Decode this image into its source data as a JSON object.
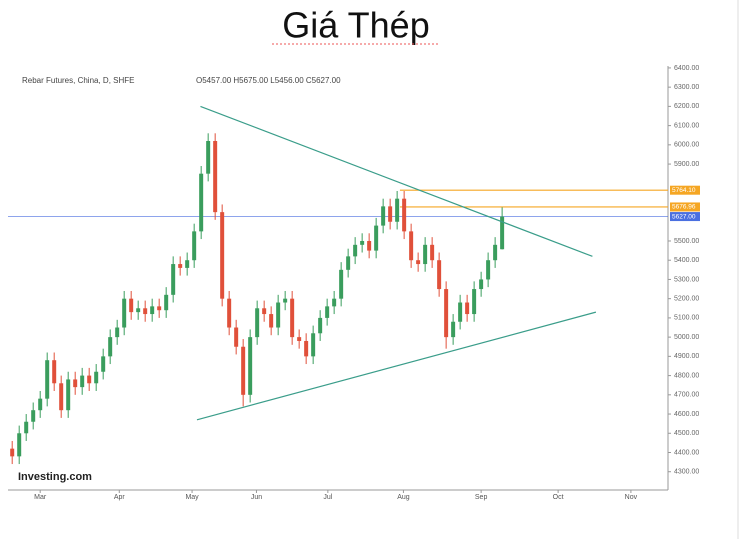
{
  "chart_data": {
    "type": "candlestick",
    "title": "Giá Thép",
    "header": "Rebar Futures, China, D, SHFE",
    "ohlc_text": "O5457.00 H5675.00 L5456.00 C5627.00",
    "watermark": "Investing.com",
    "up_color": "#3a9d5d",
    "down_color": "#e0503a",
    "open": [
      4420,
      4380,
      4500,
      4560,
      4620,
      4680,
      4880,
      4760,
      4620,
      4780,
      4740,
      4800,
      4760,
      4820,
      4900,
      5000,
      5050,
      5200,
      5130,
      5150,
      5120,
      5160,
      5140,
      5220,
      5380,
      5360,
      5400,
      5550,
      5850,
      6020,
      5650,
      5200,
      5050,
      4950,
      4700,
      5000,
      5150,
      5120,
      5050,
      5180,
      5200,
      5000,
      4980,
      4900,
      5020,
      5100,
      5160,
      5200,
      5350,
      5420,
      5480,
      5500,
      5450,
      5580,
      5680,
      5600,
      5720,
      5550,
      5400,
      5380,
      5480,
      5400,
      5250,
      5000,
      5080,
      5180,
      5120,
      5250,
      5300,
      5400,
      5457
    ],
    "high": [
      4460,
      4540,
      4600,
      4660,
      4720,
      4920,
      4920,
      4800,
      4820,
      4820,
      4840,
      4840,
      4860,
      4940,
      5040,
      5090,
      5240,
      5240,
      5190,
      5190,
      5200,
      5200,
      5260,
      5420,
      5420,
      5440,
      5590,
      5890,
      6060,
      6060,
      5690,
      5240,
      5090,
      4990,
      5040,
      5190,
      5190,
      5160,
      5220,
      5240,
      5240,
      5040,
      5020,
      5060,
      5140,
      5200,
      5240,
      5390,
      5460,
      5520,
      5540,
      5540,
      5620,
      5720,
      5720,
      5760,
      5760,
      5590,
      5440,
      5520,
      5520,
      5440,
      5290,
      5120,
      5220,
      5220,
      5290,
      5340,
      5440,
      5520,
      5675
    ],
    "low": [
      4340,
      4340,
      4460,
      4520,
      4580,
      4640,
      4720,
      4580,
      4580,
      4700,
      4700,
      4720,
      4720,
      4780,
      4860,
      4960,
      5010,
      5090,
      5090,
      5080,
      5080,
      5100,
      5100,
      5180,
      5320,
      5320,
      5360,
      5510,
      5810,
      5610,
      5160,
      5010,
      4910,
      4640,
      4660,
      4960,
      5080,
      5010,
      5010,
      5140,
      4960,
      4940,
      4860,
      4860,
      4980,
      5060,
      5120,
      5160,
      5310,
      5380,
      5440,
      5410,
      5410,
      5540,
      5560,
      5560,
      5510,
      5360,
      5340,
      5340,
      5360,
      5210,
      4940,
      4960,
      5040,
      5080,
      5080,
      5210,
      5260,
      5360,
      5456
    ],
    "close": [
      4380,
      4500,
      4560,
      4620,
      4680,
      4880,
      4760,
      4620,
      4780,
      4740,
      4800,
      4760,
      4820,
      4900,
      5000,
      5050,
      5200,
      5130,
      5150,
      5120,
      5160,
      5140,
      5220,
      5380,
      5360,
      5400,
      5550,
      5850,
      6020,
      5650,
      5200,
      5050,
      4950,
      4700,
      5000,
      5150,
      5120,
      5050,
      5180,
      5200,
      5000,
      4980,
      4900,
      5020,
      5100,
      5160,
      5200,
      5350,
      5420,
      5480,
      5500,
      5450,
      5580,
      5680,
      5600,
      5720,
      5550,
      5400,
      5380,
      5480,
      5400,
      5250,
      5000,
      5080,
      5180,
      5120,
      5250,
      5300,
      5400,
      5480,
      5627
    ],
    "xlim": [
      -0.6,
      93.7
    ],
    "xticks": [
      {
        "value": 4,
        "label": "Mar"
      },
      {
        "value": 15.3,
        "label": "Apr"
      },
      {
        "value": 25.7,
        "label": "May"
      },
      {
        "value": 34.9,
        "label": "Jun"
      },
      {
        "value": 45.1,
        "label": "Jul"
      },
      {
        "value": 55.9,
        "label": "Aug"
      },
      {
        "value": 67,
        "label": "Sep"
      },
      {
        "value": 78,
        "label": "Oct"
      },
      {
        "value": 88.4,
        "label": "Nov"
      }
    ],
    "ylim": [
      4205,
      6410
    ],
    "yticks": [
      {
        "value": 4300,
        "label": "4300.00"
      },
      {
        "value": 4400,
        "label": "4400.00"
      },
      {
        "value": 4500,
        "label": "4500.00"
      },
      {
        "value": 4600,
        "label": "4600.00"
      },
      {
        "value": 4700,
        "label": "4700.00"
      },
      {
        "value": 4800,
        "label": "4800.00"
      },
      {
        "value": 4900,
        "label": "4900.00"
      },
      {
        "value": 5000,
        "label": "5000.00"
      },
      {
        "value": 5100,
        "label": "5100.00"
      },
      {
        "value": 5200,
        "label": "5200.00"
      },
      {
        "value": 5300,
        "label": "5300.00"
      },
      {
        "value": 5400,
        "label": "5400.00"
      },
      {
        "value": 5500,
        "label": "5500.00"
      },
      {
        "value": 5900,
        "label": "5900.00"
      },
      {
        "value": 6000,
        "label": "6000.00"
      },
      {
        "value": 6100,
        "label": "6100.00"
      },
      {
        "value": 6200,
        "label": "6200.00"
      },
      {
        "value": 6300,
        "label": "6300.00"
      },
      {
        "value": 6400,
        "label": "6400.00"
      }
    ],
    "grid": false,
    "trend_lines": [
      {
        "color": "#3a9d8a",
        "x": [
          26.9,
          82.9
        ],
        "y": [
          6200,
          5420
        ]
      },
      {
        "color": "#3a9d8a",
        "x": [
          26.4,
          83.4
        ],
        "y": [
          4570,
          5130
        ]
      }
    ],
    "price_lines": [
      {
        "value": 5764.1,
        "label": "5764.10",
        "color": "#f5a623",
        "from": 55.4
      },
      {
        "value": 5676.96,
        "label": "5676.96",
        "color": "#f5a623",
        "from": 55.4
      },
      {
        "value": 5627,
        "label": "5627.00",
        "color": "#4a6fe0",
        "from": -0.6
      }
    ]
  }
}
